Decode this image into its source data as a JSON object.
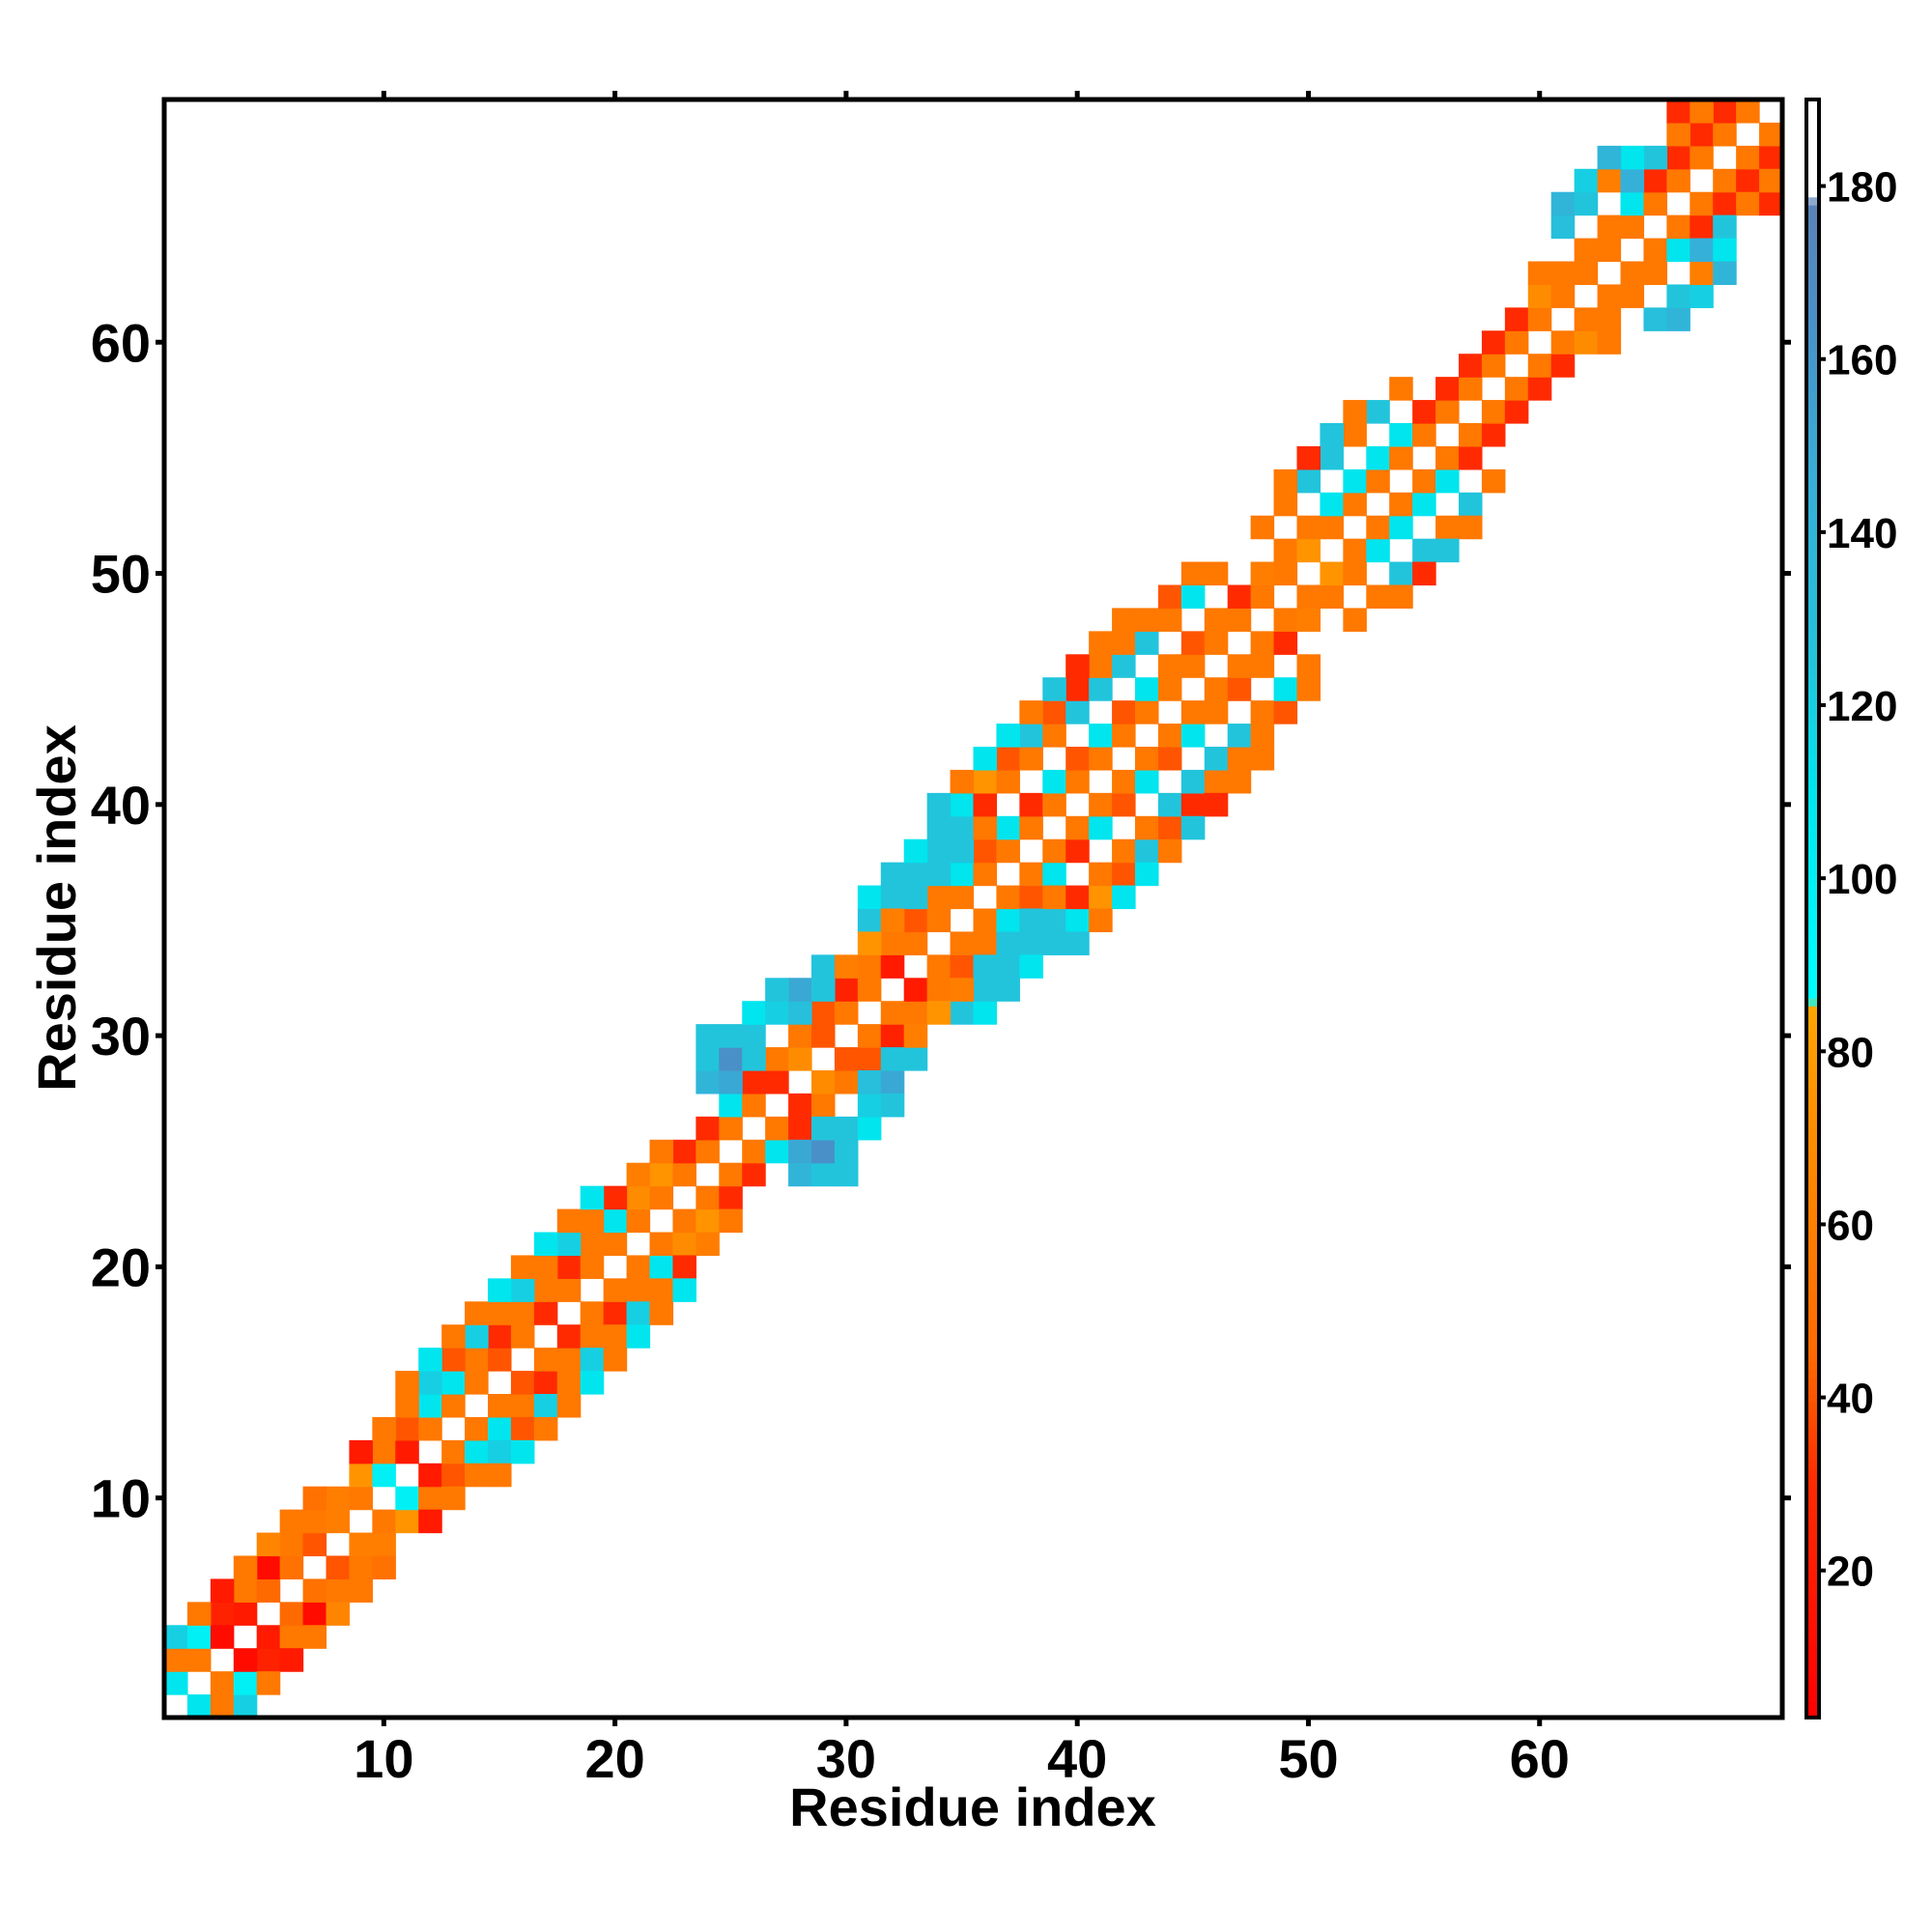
{
  "chart_data": {
    "type": "heatmap",
    "title": "",
    "xlabel": "Residue index",
    "ylabel": "Residue index",
    "xlim": [
      0.5,
      70.5
    ],
    "ylim": [
      0.5,
      70.5
    ],
    "x_ticks": [
      10,
      20,
      30,
      40,
      50,
      60
    ],
    "y_ticks": [
      10,
      20,
      30,
      40,
      50,
      60
    ],
    "colorbar": {
      "range": [
        3,
        190
      ],
      "ticks": [
        20,
        40,
        60,
        80,
        100,
        120,
        140,
        160,
        180
      ],
      "stops": [
        {
          "v": 3,
          "color": "#ff0000"
        },
        {
          "v": 30,
          "color": "#ff2a00"
        },
        {
          "v": 45,
          "color": "#ff6a00"
        },
        {
          "v": 70,
          "color": "#ff8c00"
        },
        {
          "v": 85,
          "color": "#ffa500"
        },
        {
          "v": 86,
          "color": "#00ffff"
        },
        {
          "v": 110,
          "color": "#00e5ee"
        },
        {
          "v": 125,
          "color": "#22c4dc"
        },
        {
          "v": 145,
          "color": "#35b0d8"
        },
        {
          "v": 165,
          "color": "#4a90c8"
        },
        {
          "v": 178,
          "color": "#5a82b8"
        },
        {
          "v": 179,
          "color": "#ffffff"
        },
        {
          "v": 190,
          "color": "#ffffff"
        }
      ]
    },
    "note_cells": "contacts: [i, j, value]; matrix is symmetric",
    "cells": [
      [
        1,
        2,
        110
      ],
      [
        1,
        3,
        55
      ],
      [
        2,
        3,
        55
      ],
      [
        1,
        4,
        120
      ],
      [
        2,
        4,
        100
      ],
      [
        3,
        5,
        25
      ],
      [
        3,
        4,
        10
      ],
      [
        4,
        5,
        20
      ],
      [
        4,
        6,
        55
      ],
      [
        5,
        6,
        45
      ],
      [
        5,
        7,
        10
      ],
      [
        6,
        7,
        50
      ],
      [
        6,
        8,
        55
      ],
      [
        7,
        8,
        40
      ],
      [
        7,
        9,
        55
      ],
      [
        8,
        9,
        60
      ],
      [
        8,
        10,
        60
      ],
      [
        9,
        10,
        55
      ],
      [
        9,
        11,
        75
      ],
      [
        10,
        11,
        100
      ],
      [
        10,
        12,
        55
      ],
      [
        11,
        12,
        20
      ],
      [
        11,
        13,
        40
      ],
      [
        12,
        13,
        55
      ],
      [
        12,
        14,
        110
      ],
      [
        13,
        14,
        55
      ],
      [
        13,
        15,
        110
      ],
      [
        14,
        15,
        55
      ],
      [
        14,
        16,
        55
      ],
      [
        15,
        16,
        40
      ],
      [
        15,
        17,
        30
      ],
      [
        16,
        17,
        55
      ],
      [
        16,
        18,
        55
      ],
      [
        17,
        18,
        30
      ],
      [
        17,
        19,
        55
      ],
      [
        18,
        19,
        55
      ],
      [
        18,
        20,
        30
      ],
      [
        19,
        20,
        55
      ],
      [
        19,
        21,
        55
      ],
      [
        20,
        21,
        55
      ],
      [
        20,
        22,
        110
      ],
      [
        21,
        22,
        55
      ],
      [
        21,
        23,
        70
      ],
      [
        22,
        23,
        55
      ],
      [
        22,
        24,
        75
      ],
      [
        23,
        24,
        55
      ],
      [
        23,
        25,
        30
      ],
      [
        24,
        25,
        55
      ],
      [
        24,
        26,
        30
      ],
      [
        25,
        26,
        55
      ],
      [
        25,
        27,
        110
      ],
      [
        26,
        27,
        55
      ],
      [
        26,
        28,
        30
      ],
      [
        27,
        28,
        30
      ],
      [
        27,
        29,
        55
      ],
      [
        28,
        29,
        70
      ],
      [
        28,
        30,
        55
      ],
      [
        29,
        30,
        40
      ],
      [
        29,
        31,
        40
      ],
      [
        30,
        31,
        55
      ],
      [
        30,
        32,
        25
      ],
      [
        31,
        32,
        55
      ],
      [
        31,
        33,
        55
      ],
      [
        32,
        33,
        20
      ],
      [
        32,
        34,
        55
      ],
      [
        33,
        34,
        55
      ],
      [
        33,
        35,
        40
      ],
      [
        34,
        35,
        55
      ],
      [
        34,
        36,
        55
      ],
      [
        35,
        36,
        55
      ],
      [
        35,
        37,
        110
      ],
      [
        36,
        37,
        55
      ],
      [
        36,
        38,
        40
      ],
      [
        37,
        38,
        55
      ],
      [
        37,
        39,
        110
      ],
      [
        38,
        39,
        55
      ],
      [
        38,
        40,
        30
      ],
      [
        39,
        40,
        55
      ],
      [
        39,
        41,
        110
      ],
      [
        40,
        41,
        55
      ],
      [
        40,
        42,
        40
      ],
      [
        41,
        42,
        55
      ],
      [
        41,
        43,
        110
      ],
      [
        42,
        43,
        55
      ],
      [
        42,
        44,
        40
      ],
      [
        43,
        44,
        55
      ],
      [
        43,
        45,
        110
      ],
      [
        44,
        45,
        55
      ],
      [
        44,
        46,
        55
      ],
      [
        45,
        46,
        55
      ],
      [
        45,
        47,
        40
      ],
      [
        46,
        47,
        55
      ],
      [
        46,
        48,
        55
      ],
      [
        47,
        48,
        55
      ],
      [
        47,
        49,
        30
      ],
      [
        48,
        49,
        55
      ],
      [
        48,
        50,
        60
      ],
      [
        49,
        50,
        55
      ],
      [
        49,
        51,
        55
      ],
      [
        50,
        51,
        75
      ],
      [
        50,
        52,
        55
      ],
      [
        51,
        52,
        55
      ],
      [
        51,
        53,
        110
      ],
      [
        52,
        53,
        55
      ],
      [
        52,
        54,
        110
      ],
      [
        53,
        54,
        55
      ],
      [
        53,
        55,
        110
      ],
      [
        54,
        55,
        55
      ],
      [
        54,
        56,
        110
      ],
      [
        55,
        56,
        55
      ],
      [
        55,
        57,
        30
      ],
      [
        56,
        57,
        55
      ],
      [
        56,
        58,
        30
      ],
      [
        57,
        58,
        55
      ],
      [
        57,
        59,
        30
      ],
      [
        58,
        59,
        55
      ],
      [
        58,
        60,
        30
      ],
      [
        59,
        60,
        55
      ],
      [
        59,
        61,
        30
      ],
      [
        60,
        61,
        55
      ],
      [
        60,
        62,
        70
      ],
      [
        61,
        62,
        55
      ],
      [
        61,
        63,
        55
      ],
      [
        62,
        63,
        55
      ],
      [
        62,
        64,
        55
      ],
      [
        63,
        64,
        55
      ],
      [
        63,
        65,
        55
      ],
      [
        64,
        65,
        55
      ],
      [
        64,
        66,
        110
      ],
      [
        65,
        66,
        55
      ],
      [
        65,
        67,
        30
      ],
      [
        66,
        67,
        55
      ],
      [
        66,
        68,
        30
      ],
      [
        67,
        68,
        55
      ],
      [
        67,
        69,
        30
      ],
      [
        68,
        69,
        55
      ],
      [
        68,
        70,
        30
      ],
      [
        69,
        70,
        55
      ],
      [
        2,
        5,
        55
      ],
      [
        3,
        6,
        20
      ],
      [
        4,
        7,
        55
      ],
      [
        5,
        8,
        65
      ],
      [
        6,
        9,
        55
      ],
      [
        7,
        10,
        50
      ],
      [
        9,
        12,
        20
      ],
      [
        10,
        13,
        55
      ],
      [
        11,
        14,
        55
      ],
      [
        12,
        15,
        120
      ],
      [
        13,
        16,
        40
      ],
      [
        14,
        17,
        120
      ],
      [
        15,
        18,
        55
      ],
      [
        16,
        19,
        120
      ],
      [
        17,
        20,
        55
      ],
      [
        18,
        21,
        120
      ],
      [
        19,
        22,
        55
      ],
      [
        20,
        23,
        30
      ],
      [
        21,
        24,
        60
      ],
      [
        22,
        25,
        55
      ],
      [
        14,
        18,
        55
      ],
      [
        15,
        19,
        110
      ],
      [
        16,
        20,
        55
      ],
      [
        17,
        21,
        110
      ],
      [
        18,
        22,
        55
      ],
      [
        19,
        23,
        110
      ],
      [
        13,
        17,
        55
      ],
      [
        12,
        16,
        110
      ],
      [
        11,
        15,
        55
      ],
      [
        24,
        28,
        140
      ],
      [
        25,
        28,
        150
      ],
      [
        24,
        29,
        125
      ],
      [
        25,
        29,
        165
      ],
      [
        26,
        29,
        125
      ],
      [
        24,
        30,
        125
      ],
      [
        25,
        30,
        125
      ],
      [
        26,
        30,
        125
      ],
      [
        26,
        31,
        110
      ],
      [
        27,
        31,
        120
      ],
      [
        28,
        31,
        130
      ],
      [
        29,
        31,
        130
      ],
      [
        28,
        32,
        150
      ],
      [
        29,
        32,
        125
      ],
      [
        30,
        32,
        125
      ],
      [
        27,
        32,
        125
      ],
      [
        29,
        33,
        125
      ],
      [
        30,
        33,
        60
      ],
      [
        31,
        35,
        125
      ],
      [
        31,
        36,
        110
      ],
      [
        32,
        36,
        125
      ],
      [
        33,
        36,
        125
      ],
      [
        32,
        37,
        125
      ],
      [
        33,
        37,
        125
      ],
      [
        34,
        37,
        125
      ],
      [
        34,
        38,
        125
      ],
      [
        35,
        38,
        125
      ],
      [
        35,
        39,
        125
      ],
      [
        36,
        39,
        55
      ],
      [
        34,
        39,
        125
      ],
      [
        35,
        40,
        110
      ],
      [
        36,
        40,
        30
      ],
      [
        36,
        41,
        75
      ],
      [
        37,
        41,
        55
      ],
      [
        37,
        42,
        40
      ],
      [
        38,
        42,
        55
      ],
      [
        38,
        43,
        125
      ],
      [
        39,
        43,
        55
      ],
      [
        39,
        44,
        40
      ],
      [
        40,
        44,
        125
      ],
      [
        40,
        45,
        30
      ],
      [
        41,
        45,
        125
      ],
      [
        41,
        46,
        55
      ],
      [
        42,
        46,
        125
      ],
      [
        42,
        47,
        55
      ],
      [
        43,
        47,
        125
      ],
      [
        43,
        48,
        55
      ],
      [
        44,
        48,
        55
      ],
      [
        44,
        49,
        40
      ],
      [
        45,
        49,
        110
      ],
      [
        45,
        50,
        55
      ],
      [
        46,
        50,
        55
      ],
      [
        37,
        43,
        110
      ],
      [
        38,
        44,
        55
      ],
      [
        39,
        45,
        125
      ],
      [
        40,
        46,
        30
      ],
      [
        41,
        47,
        55
      ],
      [
        42,
        48,
        55
      ],
      [
        36,
        42,
        110
      ],
      [
        35,
        41,
        55
      ],
      [
        34,
        40,
        125
      ],
      [
        33,
        38,
        110
      ],
      [
        32,
        35,
        60
      ],
      [
        31,
        34,
        75
      ],
      [
        48,
        52,
        55
      ],
      [
        49,
        53,
        55
      ],
      [
        50,
        54,
        125
      ],
      [
        51,
        55,
        125
      ],
      [
        52,
        56,
        55
      ],
      [
        53,
        57,
        125
      ],
      [
        54,
        58,
        55
      ],
      [
        52,
        57,
        55
      ],
      [
        51,
        56,
        125
      ],
      [
        50,
        55,
        30
      ],
      [
        49,
        54,
        55
      ],
      [
        60,
        63,
        55
      ],
      [
        61,
        65,
        130
      ],
      [
        61,
        66,
        140
      ],
      [
        62,
        66,
        125
      ],
      [
        62,
        67,
        120
      ],
      [
        63,
        67,
        60
      ],
      [
        64,
        67,
        145
      ],
      [
        65,
        68,
        125
      ],
      [
        64,
        68,
        110
      ],
      [
        63,
        68,
        140
      ],
      [
        66,
        69,
        55
      ],
      [
        66,
        70,
        30
      ],
      [
        67,
        70,
        55
      ]
    ]
  }
}
